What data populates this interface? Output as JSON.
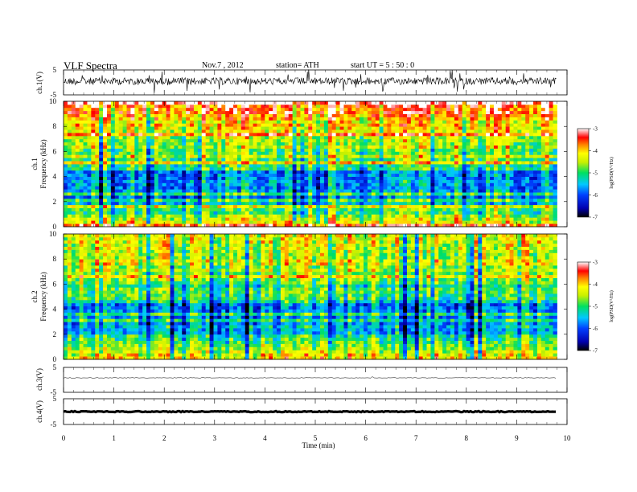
{
  "header": {
    "title": "VLF  Spectra",
    "date": "Nov.7  , 2012",
    "station": "station= ATH",
    "start": "start  UT  =   5  : 50 : 0"
  },
  "chart_data": [
    {
      "type": "line",
      "id": "ch1-waveform",
      "ylabel": "ch.1(V)",
      "ytick_labels": [
        "5",
        "-5"
      ],
      "ylim": [
        -5,
        5
      ],
      "x": [
        0,
        9.8
      ],
      "baseline": 0
    },
    {
      "type": "heatmap",
      "id": "ch1-spectrogram",
      "ylabel": [
        "ch.1",
        "Frequency  (kHz)"
      ],
      "yticks": [
        0,
        2,
        4,
        6,
        8,
        10
      ],
      "ylim": [
        0,
        10
      ],
      "colorbar": {
        "label": "log(PSD(V²/Hz)",
        "ticks": [
          -3,
          -4,
          -5,
          -6,
          -7
        ],
        "range": [
          -7,
          -3
        ]
      }
    },
    {
      "type": "heatmap",
      "id": "ch2-spectrogram",
      "ylabel": [
        "ch.2",
        "Frequency  (kHz)"
      ],
      "yticks": [
        0,
        2,
        4,
        6,
        8,
        10
      ],
      "ylim": [
        0,
        10
      ],
      "colorbar": {
        "label": "log(PSD(V²/Hz)",
        "ticks": [
          -3,
          -4,
          -5,
          -6,
          -7
        ],
        "range": [
          -7,
          -3
        ]
      }
    },
    {
      "type": "line",
      "id": "ch3-waveform",
      "ylabel": "ch.3(V)",
      "ytick_labels": [
        "5",
        "-5"
      ],
      "ylim": [
        -5,
        5
      ],
      "baseline": 0
    },
    {
      "type": "line",
      "id": "ch4-waveform",
      "ylabel": "ch.4(V)",
      "ytick_labels": [
        "5",
        "-5"
      ],
      "ylim": [
        -5,
        5
      ],
      "baseline": 0
    }
  ],
  "xaxis": {
    "label": "Time  (min)",
    "ticks": [
      0,
      1,
      2,
      3,
      4,
      5,
      6,
      7,
      8,
      9,
      10
    ],
    "xlim": [
      0,
      10
    ],
    "data_end": 9.8
  }
}
